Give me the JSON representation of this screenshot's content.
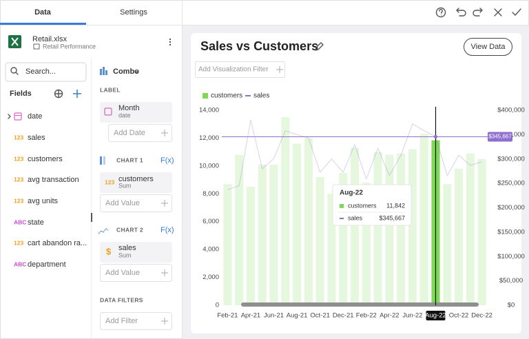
{
  "tabs": [
    "Data",
    "Settings"
  ],
  "file": {
    "name": "Retail.xlsx",
    "sheet": "Retail Performance"
  },
  "search_placeholder": "Search...",
  "fields_title": "Fields",
  "fields": [
    {
      "name": "date"
    },
    {
      "badge": "123",
      "name": "sales"
    },
    {
      "badge": "123",
      "name": "customers"
    },
    {
      "badge": "123",
      "name": "avg transaction"
    },
    {
      "badge": "123",
      "name": "avg units"
    },
    {
      "badge": "ABC",
      "name": "state"
    },
    {
      "badge": "123",
      "name": "cart abandon ra..."
    },
    {
      "badge": "ABC",
      "name": "department"
    }
  ],
  "config": {
    "chart_type": "Combo",
    "label_section": "LABEL",
    "label_field": {
      "name": "Month",
      "sub": "date"
    },
    "add_label": "Add Date",
    "chart1": {
      "title": "CHART 1",
      "fx": "F(x)",
      "field": {
        "badge": "123",
        "name": "customers",
        "sub": "Sum"
      },
      "add": "Add Value"
    },
    "chart2": {
      "title": "CHART 2",
      "fx": "F(x)",
      "field": {
        "badge": "$",
        "name": "sales",
        "sub": "Sum"
      },
      "add": "Add Value"
    },
    "filters_title": "DATA FILTERS",
    "add_filter": "Add Filter"
  },
  "visualization": {
    "title": "Sales vs Customers",
    "view_data": "View Data",
    "filter_placeholder": "Add Visualization Filter"
  },
  "chart_data": {
    "type": "combo",
    "legend": "top-left",
    "categories": [
      "Feb-21",
      null,
      "Apr-21",
      null,
      "Jun-21",
      null,
      "Aug-21",
      null,
      "Oct-21",
      null,
      "Dec-21",
      null,
      "Feb-22",
      null,
      "Apr-22",
      null,
      "Jun-22",
      null,
      "Aug-22",
      null,
      "Oct-22",
      null,
      "Dec-22"
    ],
    "series": [
      {
        "name": "customers",
        "type": "bar",
        "color": "#7ed957",
        "values": [
          8700,
          10800,
          8500,
          10100,
          10100,
          13500,
          11600,
          12000,
          9200,
          8000,
          9500,
          11300,
          8800,
          11000,
          10800,
          10900,
          11200,
          12300,
          11842,
          8700,
          9800,
          10900,
          10500
        ]
      },
      {
        "name": "sales",
        "type": "line",
        "axis": "y2",
        "color": "#8e6fd0",
        "values": [
          237000,
          245000,
          380000,
          280000,
          301000,
          358000,
          350000,
          343000,
          273000,
          300000,
          273000,
          329000,
          259000,
          322000,
          266000,
          308000,
          372000,
          358000,
          345667,
          266000,
          308000,
          287000,
          294000
        ]
      }
    ],
    "ylim": [
      0,
      14000
    ],
    "yticks": [
      0,
      {
        "value": 2000,
        "label": "2,000"
      },
      {
        "value": 4000,
        "label": "4,000"
      },
      {
        "value": 6000,
        "label": "6,000"
      },
      {
        "value": 8000,
        "label": "8,000"
      },
      {
        "value": 10000,
        "label": "10,000"
      },
      {
        "value": 12000,
        "label": "12,000"
      },
      {
        "value": 14000,
        "label": "14,000"
      }
    ],
    "y2lim": [
      0,
      400000
    ],
    "y2ticks": [
      {
        "value": 0,
        "label": "$0"
      },
      {
        "value": 50000,
        "label": "$50,000"
      },
      {
        "value": 100000,
        "label": "$100,000"
      },
      {
        "value": 150000,
        "label": "$150,000"
      },
      {
        "value": 200000,
        "label": "$200,000"
      },
      {
        "value": 250000,
        "label": "$250,000"
      },
      {
        "value": 300000,
        "label": "$300,000"
      },
      {
        "value": 350000,
        "label": "$350,000"
      },
      {
        "value": 400000,
        "label": "$400,000"
      }
    ],
    "tooltip": {
      "title": "Aug-22",
      "rows": [
        {
          "name": "customers",
          "value": "11,842"
        },
        {
          "name": "sales",
          "value": "$345,667"
        }
      ]
    },
    "crosshair_label": "$345,667"
  }
}
